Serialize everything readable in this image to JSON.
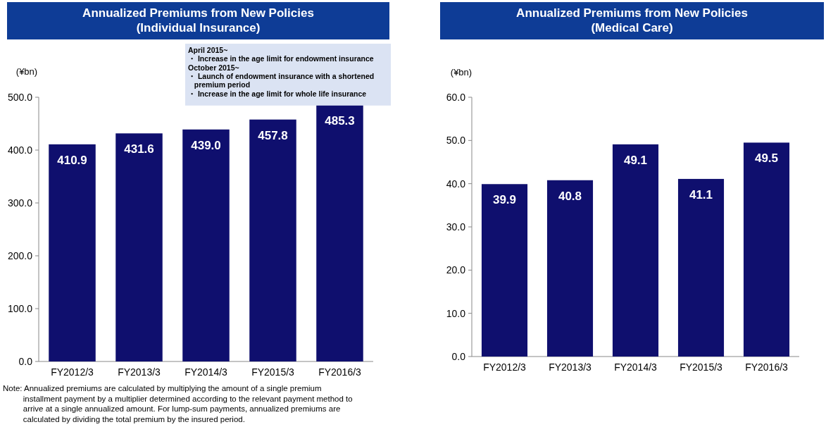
{
  "chart_data": [
    {
      "type": "bar",
      "title": "Annualized Premiums from New Policies\n(Individual Insurance)",
      "ylabel": "(¥bn)",
      "categories": [
        "FY2012/3",
        "FY2013/3",
        "FY2014/3",
        "FY2015/3",
        "FY2016/3"
      ],
      "values": [
        410.9,
        431.6,
        439.0,
        457.8,
        485.3
      ],
      "value_labels": [
        "410.9",
        "431.6",
        "439.0",
        "457.8",
        "485.3"
      ],
      "color": "#0f0f6e",
      "ylim": [
        0,
        500
      ],
      "yticks": [
        {
          "value": 0,
          "label": "0.0"
        },
        {
          "value": 100,
          "label": "100.0"
        },
        {
          "value": 200,
          "label": "200.0"
        },
        {
          "value": 300,
          "label": "300.0"
        },
        {
          "value": 400,
          "label": "400.0"
        },
        {
          "value": 500,
          "label": "500.0"
        }
      ],
      "annotations": [
        "April 2015~\n・ Increase in the age limit for endowment insurance\nOctober 2015~\n・ Launch of endowment insurance with a shortened\n   premium period\n・ Increase in the age limit for whole life insurance",
        "Note: Annualized premiums are calculated by multiplying the amount of a single premium\n         installment payment by a multiplier determined according to the relevant payment method to\n         arrive at a single annualized amount. For lump-sum payments, annualized premiums are\n         calculated by dividing the total premium by the insured period."
      ]
    },
    {
      "type": "bar",
      "title": "Annualized Premiums from New Policies\n(Medical Care)",
      "ylabel": "(¥bn)",
      "categories": [
        "FY2012/3",
        "FY2013/3",
        "FY2014/3",
        "FY2015/3",
        "FY2016/3"
      ],
      "values": [
        39.9,
        40.8,
        49.1,
        41.1,
        49.5
      ],
      "value_labels": [
        "39.9",
        "40.8",
        "49.1",
        "41.1",
        "49.5"
      ],
      "color": "#0f0f6e",
      "ylim": [
        0,
        60
      ],
      "yticks": [
        {
          "value": 0,
          "label": "0.0"
        },
        {
          "value": 10,
          "label": "10.0"
        },
        {
          "value": 20,
          "label": "20.0"
        },
        {
          "value": 30,
          "label": "30.0"
        },
        {
          "value": 40,
          "label": "40.0"
        },
        {
          "value": 50,
          "label": "50.0"
        },
        {
          "value": 60,
          "label": "60.0"
        }
      ]
    }
  ]
}
